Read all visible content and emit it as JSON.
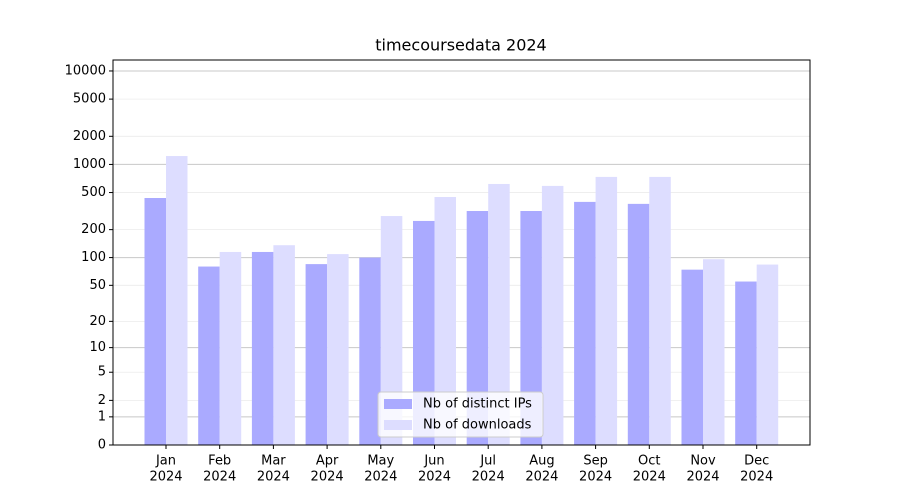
{
  "chart_data": {
    "type": "bar",
    "title": "timecoursedata 2024",
    "yscale": "log1p",
    "categories": [
      [
        "Jan",
        "2024"
      ],
      [
        "Feb",
        "2024"
      ],
      [
        "Mar",
        "2024"
      ],
      [
        "Apr",
        "2024"
      ],
      [
        "May",
        "2024"
      ],
      [
        "Jun",
        "2024"
      ],
      [
        "Jul",
        "2024"
      ],
      [
        "Aug",
        "2024"
      ],
      [
        "Sep",
        "2024"
      ],
      [
        "Oct",
        "2024"
      ],
      [
        "Nov",
        "2024"
      ],
      [
        "Dec",
        "2024"
      ]
    ],
    "series": [
      {
        "name": "Nb of distinct IPs",
        "color": "#aaaaff",
        "values": [
          437,
          80,
          115,
          85,
          100,
          248,
          317,
          317,
          397,
          378,
          74,
          55
        ]
      },
      {
        "name": "Nb of downloads",
        "color": "#ddddff",
        "values": [
          1230,
          115,
          136,
          109,
          280,
          448,
          618,
          589,
          735,
          735,
          96,
          84
        ]
      }
    ],
    "ylim": [
      0,
      13100
    ],
    "yticks": [
      0,
      1,
      2,
      5,
      10,
      20,
      50,
      100,
      200,
      500,
      1000,
      2000,
      5000,
      10000
    ],
    "grid": true,
    "legend": "lower center"
  }
}
